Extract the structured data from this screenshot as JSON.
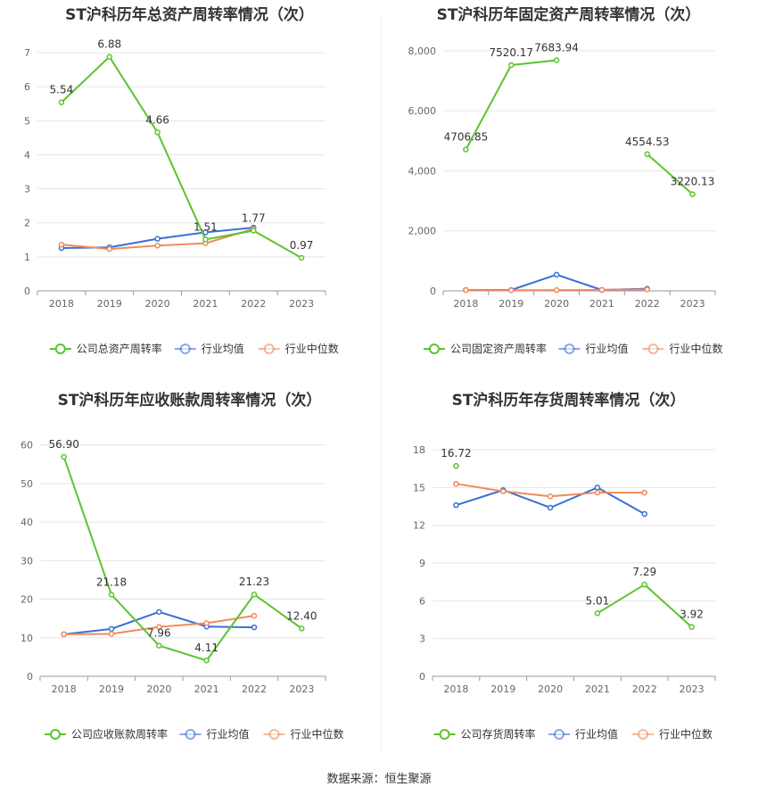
{
  "source": "数据来源：恒生聚源",
  "chart_data": [
    {
      "type": "line",
      "title": "ST沪科历年总资产周转率情况（次）",
      "x": [
        "2018",
        "2019",
        "2020",
        "2021",
        "2022",
        "2023"
      ],
      "ylim": [
        0,
        7.5
      ],
      "yticks": [
        0,
        1,
        2,
        3,
        4,
        5,
        6,
        7
      ],
      "ytick_labels": [
        "0",
        "1",
        "2",
        "3",
        "4",
        "5",
        "6",
        "7"
      ],
      "grid": true,
      "legend": "bottom",
      "series": [
        {
          "name": "公司总资产周转率",
          "color": "#5cc42e",
          "values": [
            5.54,
            6.88,
            4.66,
            1.51,
            1.77,
            0.97
          ],
          "labels": [
            "5.54",
            "6.88",
            "4.66",
            "1.51",
            "1.77",
            "0.97"
          ]
        },
        {
          "name": "行业均值",
          "color": "#3a6fd8",
          "values": [
            1.26,
            1.28,
            1.53,
            1.72,
            1.86,
            null
          ]
        },
        {
          "name": "行业中位数",
          "color": "#f08a5d",
          "values": [
            1.36,
            1.23,
            1.33,
            1.4,
            1.82,
            null
          ]
        }
      ]
    },
    {
      "type": "line",
      "title": "ST沪科历年固定资产周转率情况（次）",
      "x": [
        "2018",
        "2019",
        "2020",
        "2021",
        "2022",
        "2023"
      ],
      "ylim": [
        0,
        8500
      ],
      "yticks": [
        0,
        2000,
        4000,
        6000,
        8000
      ],
      "ytick_labels": [
        "0",
        "2,000",
        "4,000",
        "6,000",
        "8,000"
      ],
      "grid": true,
      "legend": "bottom",
      "series": [
        {
          "name": "公司固定资产周转率",
          "color": "#5cc42e",
          "values": [
            4706.85,
            7520.17,
            7683.94,
            null,
            4554.53,
            3220.13
          ],
          "labels": [
            "4706.85",
            "7520.17",
            "7683.94",
            null,
            "4554.53",
            "3220.13"
          ]
        },
        {
          "name": "行业均值",
          "color": "#3a6fd8",
          "values": [
            30,
            30,
            540,
            30,
            70,
            null
          ]
        },
        {
          "name": "行业中位数",
          "color": "#f08a5d",
          "values": [
            25,
            20,
            25,
            35,
            45,
            null
          ]
        }
      ]
    },
    {
      "type": "line",
      "title": "ST沪科历年应收账款周转率情况（次）",
      "x": [
        "2018",
        "2019",
        "2020",
        "2021",
        "2022",
        "2023"
      ],
      "ylim": [
        0,
        62
      ],
      "yticks": [
        0,
        10,
        20,
        30,
        40,
        50,
        60
      ],
      "ytick_labels": [
        "0",
        "10",
        "20",
        "30",
        "40",
        "50",
        "60"
      ],
      "grid": true,
      "legend": "bottom",
      "series": [
        {
          "name": "公司应收账款周转率",
          "color": "#5cc42e",
          "values": [
            56.9,
            21.18,
            7.96,
            4.11,
            21.23,
            12.4
          ],
          "labels": [
            "56.90",
            "21.18",
            "7.96",
            "4.11",
            "21.23",
            "12.40"
          ]
        },
        {
          "name": "行业均值",
          "color": "#3a6fd8",
          "values": [
            10.9,
            12.3,
            16.7,
            12.9,
            12.7,
            null
          ]
        },
        {
          "name": "行业中位数",
          "color": "#f08a5d",
          "values": [
            10.9,
            11.0,
            12.8,
            13.8,
            15.7,
            null
          ]
        }
      ]
    },
    {
      "type": "line",
      "title": "ST沪科历年存货周转率情况（次）",
      "x": [
        "2018",
        "2019",
        "2020",
        "2021",
        "2022",
        "2023"
      ],
      "ylim": [
        0,
        19
      ],
      "yticks": [
        0,
        3,
        6,
        9,
        12,
        15,
        18
      ],
      "ytick_labels": [
        "0",
        "3",
        "6",
        "9",
        "12",
        "15",
        "18"
      ],
      "grid": true,
      "legend": "bottom",
      "series": [
        {
          "name": "公司存货周转率",
          "color": "#5cc42e",
          "values": [
            16.72,
            null,
            null,
            5.01,
            7.29,
            3.92
          ],
          "labels": [
            "16.72",
            null,
            null,
            "5.01",
            "7.29",
            "3.92"
          ]
        },
        {
          "name": "行业均值",
          "color": "#3a6fd8",
          "values": [
            13.6,
            14.8,
            13.4,
            15.0,
            12.9,
            null
          ]
        },
        {
          "name": "行业中位数",
          "color": "#f08a5d",
          "values": [
            15.3,
            14.7,
            14.3,
            14.6,
            14.6,
            null
          ]
        }
      ]
    }
  ]
}
